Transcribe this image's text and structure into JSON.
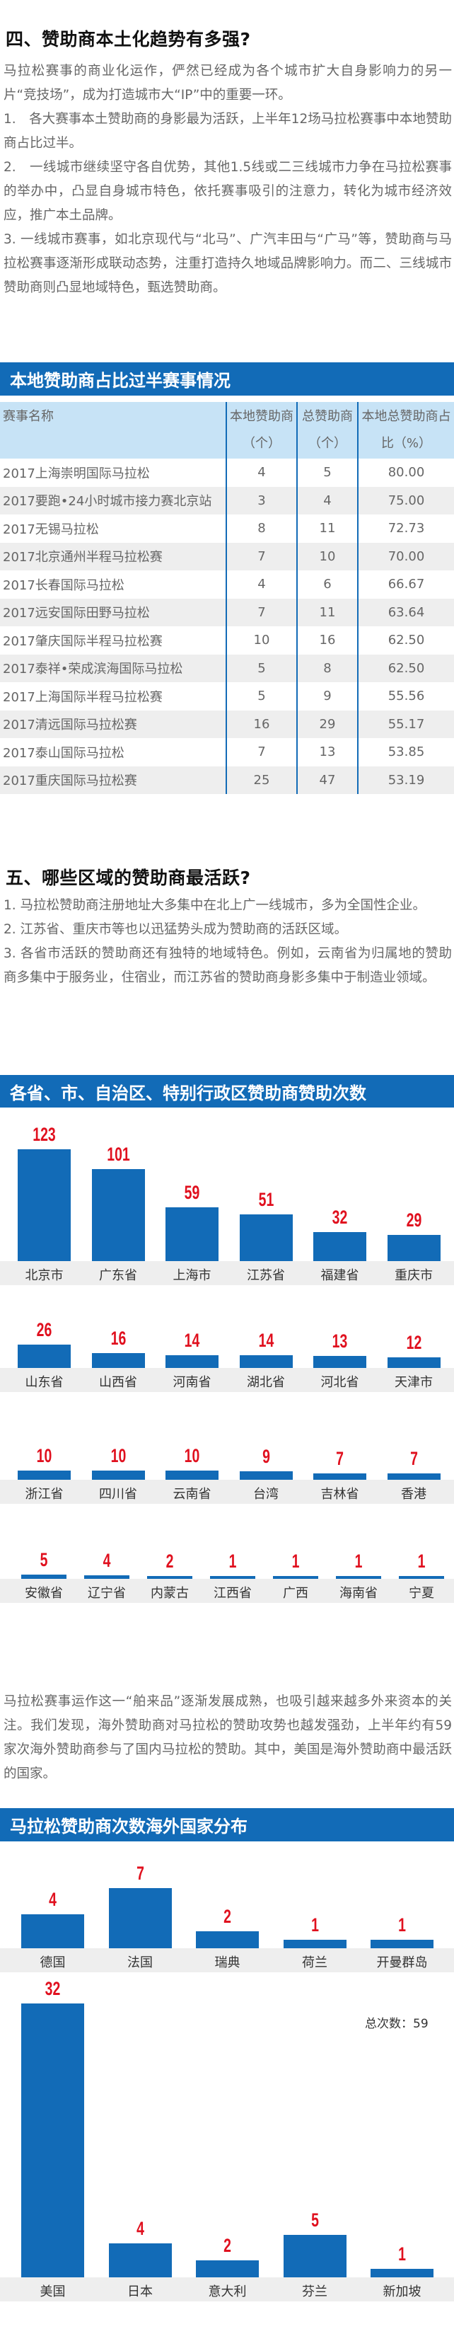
{
  "section4": {
    "heading": "四、赞助商本土化趋势有多强?",
    "paragraphs": [
      "马拉松赛事的商业化运作，俨然已经成为各个城市扩大自身影响力的另一片“竞技场”，成为打造城市大“IP”中的重要一环。",
      "1.　各大赛事本土赞助商的身影最为活跃，上半年12场马拉松赛事中本地赞助商占比过半。",
      "2.　一线城市继续坚守各自优势，其他1.5线或二三线城市力争在马拉松赛事的举办中，凸显自身城市特色，依托赛事吸引的注意力，转化为城市经济效应，推广本土品牌。",
      "3. 一线城市赛事，如北京现代与“北马”、广汽丰田与“广马”等，赞助商与马拉松赛事逐渐形成联动态势，注重打造持久地域品牌影响力。而二、三线城市赞助商则凸显地域特色，甄选赞助商。"
    ]
  },
  "table": {
    "title": "本地赞助商占比过半赛事情况",
    "headers": [
      "赛事名称",
      "本地赞助商（个）",
      "总赞助商（个）",
      "本地总赞助商占比（%）"
    ],
    "rows": [
      [
        "2017上海崇明国际马拉松",
        "4",
        "5",
        "80.00"
      ],
      [
        "2017要跑•24小时城市接力赛北京站",
        "3",
        "4",
        "75.00"
      ],
      [
        "2017无锡马拉松",
        "8",
        "11",
        "72.73"
      ],
      [
        "2017北京通州半程马拉松赛",
        "7",
        "10",
        "70.00"
      ],
      [
        "2017长春国际马拉松",
        "4",
        "6",
        "66.67"
      ],
      [
        "2017远安国际田野马拉松",
        "7",
        "11",
        "63.64"
      ],
      [
        "2017肇庆国际半程马拉松赛",
        "10",
        "16",
        "62.50"
      ],
      [
        "2017泰祥•荣成滨海国际马拉松",
        "5",
        "8",
        "62.50"
      ],
      [
        "2017上海国际半程马拉松赛",
        "5",
        "9",
        "55.56"
      ],
      [
        "2017清远国际马拉松赛",
        "16",
        "29",
        "55.17"
      ],
      [
        "2017泰山国际马拉松",
        "7",
        "13",
        "53.85"
      ],
      [
        "2017重庆国际马拉松赛",
        "25",
        "47",
        "53.19"
      ]
    ]
  },
  "section5": {
    "heading": "五、哪些区域的赞助商最活跃?",
    "paragraphs": [
      "1. 马拉松赞助商注册地址大多集中在北上广一线城市，多为全国性企业。",
      "2. 江苏省、重庆市等也以迅猛势头成为赞助商的活跃区域。",
      "3. 各省市活跃的赞助商还有独特的地域特色。例如，云南省为归属地的赞助商多集中于服务业，住宿业，而江苏省的赞助商身影多集中于制造业领域。"
    ]
  },
  "paragraph_overseas": "马拉松赛事运作这一“舶来品”逐渐发展成熟，也吸引越来越多外来资本的关注。我们发现，海外赞助商对马拉松的赞助攻势也越发强劲，上半年约有59家次海外赞助商参与了国内马拉松的赞助。其中，美国是海外赞助商中最活跃的国家。",
  "colors": {
    "accent_blue": "#126bb7",
    "value_red": "#e0101e",
    "band_gray": "#eeeeee",
    "table_header": "#c7e3f6"
  },
  "chart_data": [
    {
      "type": "bar",
      "title": "各省、市、自治区、特别行政区赞助商赞助次数",
      "xlabel": "",
      "ylabel": "",
      "grid": false,
      "categories": [
        "北京市",
        "广东省",
        "上海市",
        "江苏省",
        "福建省",
        "重庆市",
        "山东省",
        "山西省",
        "河南省",
        "湖北省",
        "河北省",
        "天津市",
        "浙江省",
        "四川省",
        "云南省",
        "台湾",
        "吉林省",
        "香港",
        "安徽省",
        "辽宁省",
        "内蒙古",
        "江西省",
        "广西",
        "海南省",
        "宁夏"
      ],
      "values": [
        123,
        101,
        59,
        51,
        32,
        29,
        26,
        16,
        14,
        14,
        13,
        12,
        10,
        10,
        10,
        9,
        7,
        7,
        5,
        4,
        2,
        1,
        1,
        1,
        1
      ],
      "rows": [
        {
          "categories": [
            "北京市",
            "广东省",
            "上海市",
            "江苏省",
            "福建省",
            "重庆市"
          ],
          "values": [
            123,
            101,
            59,
            51,
            32,
            29
          ]
        },
        {
          "categories": [
            "山东省",
            "山西省",
            "河南省",
            "湖北省",
            "河北省",
            "天津市"
          ],
          "values": [
            26,
            16,
            14,
            14,
            13,
            12
          ]
        },
        {
          "categories": [
            "浙江省",
            "四川省",
            "云南省",
            "台湾",
            "吉林省",
            "香港"
          ],
          "values": [
            10,
            10,
            10,
            9,
            7,
            7
          ]
        },
        {
          "categories": [
            "安徽省",
            "辽宁省",
            "内蒙古",
            "江西省",
            "广西",
            "海南省",
            "宁夏"
          ],
          "values": [
            5,
            4,
            2,
            1,
            1,
            1,
            1
          ]
        }
      ]
    },
    {
      "type": "bar",
      "title": "马拉松赞助商次数海外国家分布",
      "xlabel": "",
      "ylabel": "",
      "grid": false,
      "annotation": "总次数：59",
      "categories": [
        "德国",
        "法国",
        "瑞典",
        "荷兰",
        "开曼群岛",
        "美国",
        "日本",
        "意大利",
        "芬兰",
        "新加坡"
      ],
      "values": [
        4,
        7,
        2,
        1,
        1,
        32,
        4,
        2,
        5,
        1
      ],
      "rows": [
        {
          "categories": [
            "德国",
            "法国",
            "瑞典",
            "荷兰",
            "开曼群岛"
          ],
          "values": [
            4,
            7,
            2,
            1,
            1
          ]
        },
        {
          "categories": [
            "美国",
            "日本",
            "意大利",
            "芬兰",
            "新加坡"
          ],
          "values": [
            32,
            4,
            2,
            5,
            1
          ]
        }
      ]
    }
  ]
}
